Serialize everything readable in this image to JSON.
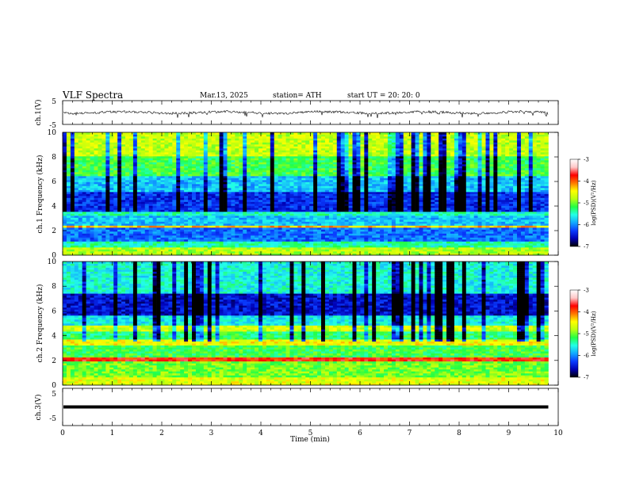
{
  "header": {
    "title": "VLF  Spectra",
    "date": "Mar.13, 2025",
    "station": "station= ATH",
    "start_ut": "start  UT  =    20: 20: 0"
  },
  "colors": {
    "colormap": [
      "#000000",
      "#0000b4",
      "#0a3cff",
      "#12a8ff",
      "#22ffe8",
      "#22ff44",
      "#b8ff10",
      "#ffff00",
      "#ff7800",
      "#ff0000",
      "#ffc8c8",
      "#ffffff"
    ]
  },
  "chart_data": [
    {
      "type": "line",
      "panel": "ch1-waveform",
      "ylabel": "ch.1(V)",
      "ylim": [
        -5,
        5
      ],
      "yticks": [
        "5",
        "-5"
      ],
      "trace": {
        "baseline": 0,
        "amplitude": 1.0,
        "end_min": 9.8
      }
    },
    {
      "type": "heatmap",
      "panel": "ch1-spectrogram",
      "ylabel": "ch.1 Frequency  (kHz)",
      "ylim": [
        0,
        10
      ],
      "yticks": [
        "0",
        "2",
        "4",
        "6",
        "8",
        "10"
      ],
      "xlim": [
        0,
        10
      ],
      "data_end_min": 9.8,
      "colorbar": {
        "label": "log(PSD)(V²/Hz)",
        "range": [
          -7,
          -3
        ],
        "ticks": [
          "-3",
          "-4",
          "-5",
          "-6",
          "-7"
        ]
      },
      "bands": [
        {
          "from": 0.0,
          "to": 0.6,
          "level": 0.55
        },
        {
          "from": 0.6,
          "to": 1.2,
          "level": 0.4
        },
        {
          "from": 1.2,
          "to": 2.2,
          "level": 0.22
        },
        {
          "from": 2.2,
          "to": 2.4,
          "level": 0.68
        },
        {
          "from": 2.4,
          "to": 3.2,
          "level": 0.3
        },
        {
          "from": 3.2,
          "to": 3.5,
          "level": 0.38
        },
        {
          "from": 3.5,
          "to": 5.2,
          "level": 0.16
        },
        {
          "from": 5.2,
          "to": 6.5,
          "level": 0.3
        },
        {
          "from": 6.5,
          "to": 8.0,
          "level": 0.46
        },
        {
          "from": 8.0,
          "to": 10.0,
          "level": 0.57
        }
      ]
    },
    {
      "type": "heatmap",
      "panel": "ch2-spectrogram",
      "ylabel": "ch.2 Frequency  (kHz)",
      "ylim": [
        0,
        10
      ],
      "yticks": [
        "0",
        "2",
        "4",
        "6",
        "8",
        "10"
      ],
      "xlim": [
        0,
        10
      ],
      "data_end_min": 9.8,
      "colorbar": {
        "label": "log(PSD)(V²/Hz)",
        "range": [
          -7,
          -3
        ],
        "ticks": [
          "-3",
          "-4",
          "-5",
          "-6",
          "-7"
        ]
      },
      "bands": [
        {
          "from": 0.0,
          "to": 0.6,
          "level": 0.6
        },
        {
          "from": 0.6,
          "to": 2.0,
          "level": 0.5
        },
        {
          "from": 2.0,
          "to": 2.3,
          "level": 0.8
        },
        {
          "from": 2.3,
          "to": 3.3,
          "level": 0.46
        },
        {
          "from": 3.3,
          "to": 3.7,
          "level": 0.62
        },
        {
          "from": 3.7,
          "to": 4.4,
          "level": 0.44
        },
        {
          "from": 4.4,
          "to": 4.8,
          "level": 0.58
        },
        {
          "from": 4.8,
          "to": 5.6,
          "level": 0.35
        },
        {
          "from": 5.6,
          "to": 7.5,
          "level": 0.12
        },
        {
          "from": 7.5,
          "to": 10.0,
          "level": 0.36
        }
      ]
    },
    {
      "type": "line",
      "panel": "ch3-waveform",
      "ylabel": "ch.3(V)",
      "ylim": [
        -5,
        5
      ],
      "yticks": [
        "5",
        "0",
        "-5"
      ],
      "trace": {
        "baseline": 0,
        "amplitude": 0.0,
        "end_min": 9.8
      }
    }
  ],
  "xaxis": {
    "label": "Time  (min)",
    "xlim": [
      0,
      10
    ],
    "ticks": [
      "0",
      "1",
      "2",
      "3",
      "4",
      "5",
      "6",
      "7",
      "8",
      "9",
      "10"
    ]
  }
}
